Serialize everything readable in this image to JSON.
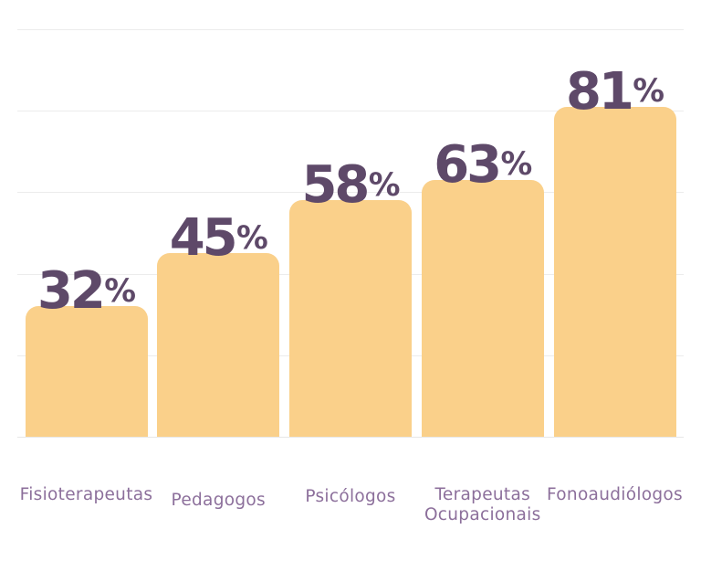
{
  "chart_data": {
    "type": "bar",
    "title": "",
    "categories": [
      "Fisioterapeutas",
      "Pedagogos",
      "Psicólogos",
      "Terapeutas Ocupacionais",
      "Fonoaudiólogos"
    ],
    "values": [
      32,
      45,
      58,
      63,
      81
    ],
    "value_labels": [
      "32%",
      "45%",
      "58%",
      "63%",
      "81%"
    ],
    "unit": "%",
    "ylim": [
      0,
      100
    ],
    "gridline_values": [
      0,
      20,
      40,
      60,
      80,
      100
    ],
    "grid": true,
    "legend": false,
    "colors": {
      "bar_fill": "#FAD08A",
      "value_label": "#5E4969",
      "category_label": "#8C6F9B",
      "gridline": "#ECECEC",
      "background": "#FFFFFF"
    }
  }
}
